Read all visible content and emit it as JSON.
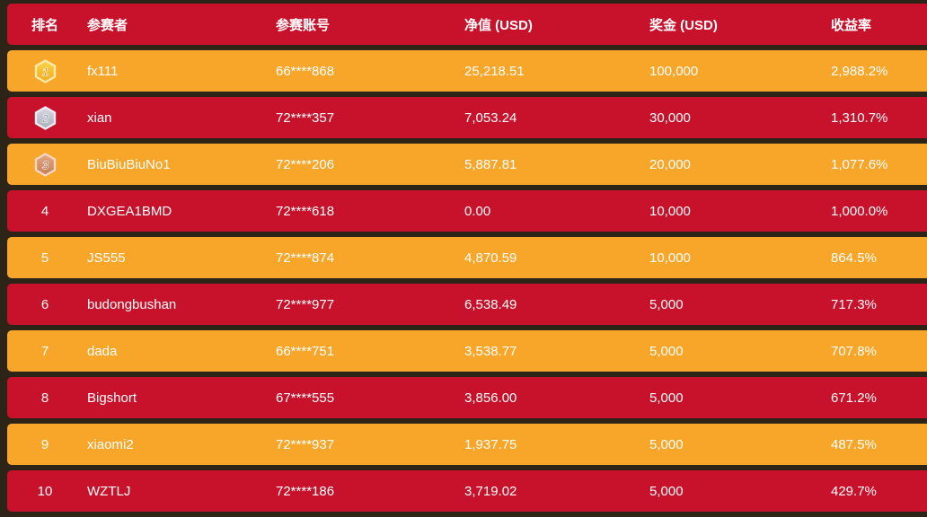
{
  "table": {
    "columns": [
      {
        "key": "rank",
        "label": "排名"
      },
      {
        "key": "participant",
        "label": "参赛者"
      },
      {
        "key": "account",
        "label": "参赛账号"
      },
      {
        "key": "net_value",
        "label": "净值 (USD)"
      },
      {
        "key": "prize",
        "label": "奖金 (USD)"
      },
      {
        "key": "return_rate",
        "label": "收益率"
      }
    ],
    "rows": [
      {
        "rank": "1",
        "medal": "gold-medal-icon",
        "participant": "fx111",
        "account": "66****868",
        "net_value": "25,218.51",
        "prize": "100,000",
        "return_rate": "2,988.2%"
      },
      {
        "rank": "2",
        "medal": "silver-medal-icon",
        "participant": "xian",
        "account": "72****357",
        "net_value": "7,053.24",
        "prize": "30,000",
        "return_rate": "1,310.7%"
      },
      {
        "rank": "3",
        "medal": "bronze-medal-icon",
        "participant": "BiuBiuBiuNo1",
        "account": "72****206",
        "net_value": "5,887.81",
        "prize": "20,000",
        "return_rate": "1,077.6%"
      },
      {
        "rank": "4",
        "participant": "DXGEA1BMD",
        "account": "72****618",
        "net_value": "0.00",
        "prize": "10,000",
        "return_rate": "1,000.0%"
      },
      {
        "rank": "5",
        "participant": "JS555",
        "account": "72****874",
        "net_value": "4,870.59",
        "prize": "10,000",
        "return_rate": "864.5%"
      },
      {
        "rank": "6",
        "participant": "budongbushan",
        "account": "72****977",
        "net_value": "6,538.49",
        "prize": "5,000",
        "return_rate": "717.3%"
      },
      {
        "rank": "7",
        "participant": "dada",
        "account": "66****751",
        "net_value": "3,538.77",
        "prize": "5,000",
        "return_rate": "707.8%"
      },
      {
        "rank": "8",
        "participant": "Bigshort",
        "account": "67****555",
        "net_value": "3,856.00",
        "prize": "5,000",
        "return_rate": "671.2%"
      },
      {
        "rank": "9",
        "participant": "xiaomi2",
        "account": "72****937",
        "net_value": "1,937.75",
        "prize": "5,000",
        "return_rate": "487.5%"
      },
      {
        "rank": "10",
        "participant": "WZTLJ",
        "account": "72****186",
        "net_value": "3,719.02",
        "prize": "5,000",
        "return_rate": "429.7%"
      }
    ]
  },
  "colors": {
    "background": "#2d2418",
    "header_red": "#c8112a",
    "row_red": "#c8112a",
    "row_orange": "#f7a62a",
    "text": "#ffffff",
    "medals": {
      "gold-medal-icon": {
        "border": "#fceba8",
        "light": "#fbd44c",
        "dark": "#f2a91d",
        "num": "#e8951c"
      },
      "silver-medal-icon": {
        "border": "#eceef3",
        "light": "#d8dbe2",
        "dark": "#a9adbb",
        "num": "#8d92a4"
      },
      "bronze-medal-icon": {
        "border": "#f6d7c4",
        "light": "#e4a987",
        "dark": "#c57d54",
        "num": "#a96744"
      }
    }
  }
}
